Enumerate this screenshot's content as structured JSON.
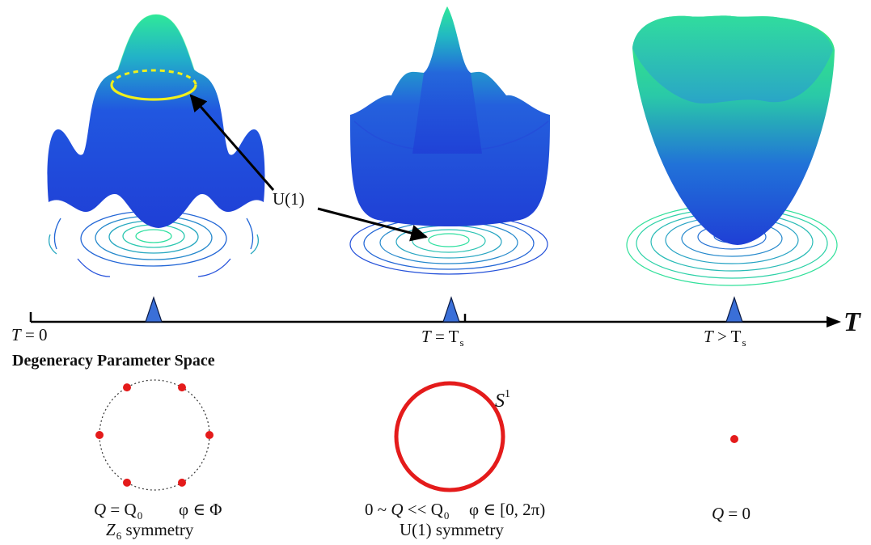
{
  "colors": {
    "surface_low": "#1f3fd6",
    "surface_high": "#2fe89a",
    "ring_yellow": "#f0ef1c",
    "marker_blue": "#3a6fd8",
    "circle_red": "#e41b1b",
    "axis": "#000000"
  },
  "axis": {
    "t_zero_var": "T",
    "t_zero_rest": " = 0",
    "t_s_var": "T",
    "t_s_rest": " = T",
    "t_s_sub": "s",
    "t_gt_var": "T",
    "t_gt_rest": " > T",
    "t_gt_sub": "s",
    "axis_label": "T"
  },
  "annotation": {
    "u1": "U(1)"
  },
  "section": {
    "heading": "Degeneracy Parameter Space"
  },
  "panels": {
    "left": {
      "q_var": "Q",
      "q_rest": " = Q",
      "q_sub": "0",
      "phi": "φ ∈ Φ",
      "sym_var": "Z",
      "sym_sub": "6",
      "sym_rest": " symmetry",
      "dot_count": 6
    },
    "middle": {
      "q_pre": "0 ~ ",
      "q_var": "Q",
      "q_rest": " << Q",
      "q_sub": "0",
      "phi": "φ ∈ [0, 2π)",
      "sym": "U(1) symmetry",
      "circle_var": "S",
      "circle_sup": "1"
    },
    "right": {
      "q_var": "Q",
      "q_rest": " = 0"
    }
  }
}
